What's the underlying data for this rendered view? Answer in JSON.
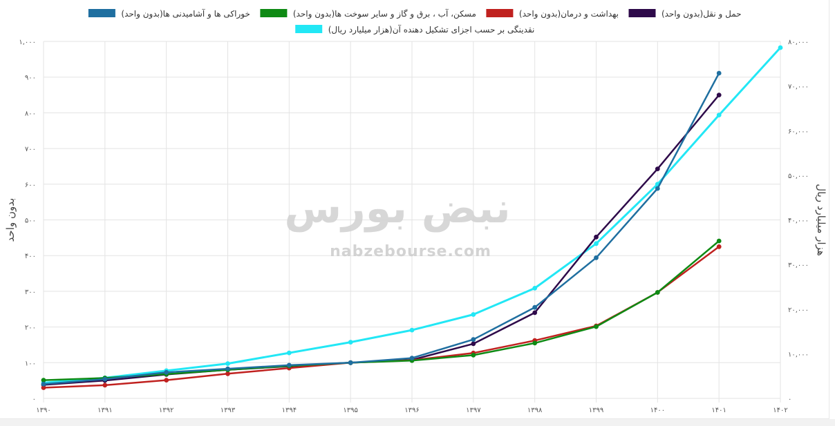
{
  "watermark": {
    "logo_text": "نبض بورس",
    "site": "nabzebourse.com"
  },
  "chart_data": {
    "type": "line",
    "x": [
      "۱۳۹۰",
      "۱۳۹۱",
      "۱۳۹۲",
      "۱۳۹۳",
      "۱۳۹۴",
      "۱۳۹۵",
      "۱۳۹۶",
      "۱۳۹۷",
      "۱۳۹۸",
      "۱۳۹۹",
      "۱۴۰۰",
      "۱۴۰۱",
      "۱۴۰۲"
    ],
    "ylabel_left": "بدون واحد",
    "ylabel_right": "هزار میلیارد ریال",
    "ylim_left": [
      0,
      1000
    ],
    "ylim_right": [
      0,
      80000
    ],
    "yticks_left": [
      "۰",
      "۱۰۰",
      "۲۰۰",
      "۳۰۰",
      "۴۰۰",
      "۵۰۰",
      "۶۰۰",
      "۷۰۰",
      "۸۰۰",
      "۹۰۰",
      "۱,۰۰۰"
    ],
    "yticks_right": [
      "۰",
      "۱۰,۰۰۰",
      "۲۰,۰۰۰",
      "۳۰,۰۰۰",
      "۴۰,۰۰۰",
      "۵۰,۰۰۰",
      "۶۰,۰۰۰",
      "۷۰,۰۰۰",
      "۸۰,۰۰۰"
    ],
    "grid": true,
    "legend_position": "top",
    "series": [
      {
        "name": "حمل و نقل(بدون واحد)",
        "color": "#2e0a4a",
        "axis": "left",
        "values": [
          38,
          50,
          67,
          80,
          90,
          100,
          108,
          153,
          240,
          452,
          643,
          850,
          null
        ]
      },
      {
        "name": "بهداشت و درمان(بدون واحد)",
        "color": "#c0211f",
        "axis": "left",
        "values": [
          30,
          37,
          51,
          69,
          85,
          100,
          107,
          127,
          162,
          203,
          297,
          425,
          null
        ]
      },
      {
        "name": "مسکن، آب ، برق و گاز و سایر سوخت ها(بدون واحد)",
        "color": "#0e8a14",
        "axis": "left",
        "values": [
          51,
          57,
          68,
          80,
          91,
          100,
          106,
          121,
          155,
          201,
          297,
          441,
          null
        ]
      },
      {
        "name": "خوراکی ها و آشامیدنی ها(بدون واحد)",
        "color": "#1f6fa0",
        "axis": "left",
        "values": [
          40,
          54,
          73,
          83,
          93,
          100,
          113,
          165,
          255,
          394,
          588,
          911,
          null
        ]
      },
      {
        "name": "نقدینگی بر حسب اجزای تشکیل دهنده آن(هزار میلیارد ریال)",
        "color": "#22e7f5",
        "axis": "right",
        "values": [
          3500,
          4600,
          6200,
          7800,
          10200,
          12600,
          15300,
          18800,
          24700,
          34700,
          48000,
          63500,
          78600
        ]
      }
    ]
  }
}
